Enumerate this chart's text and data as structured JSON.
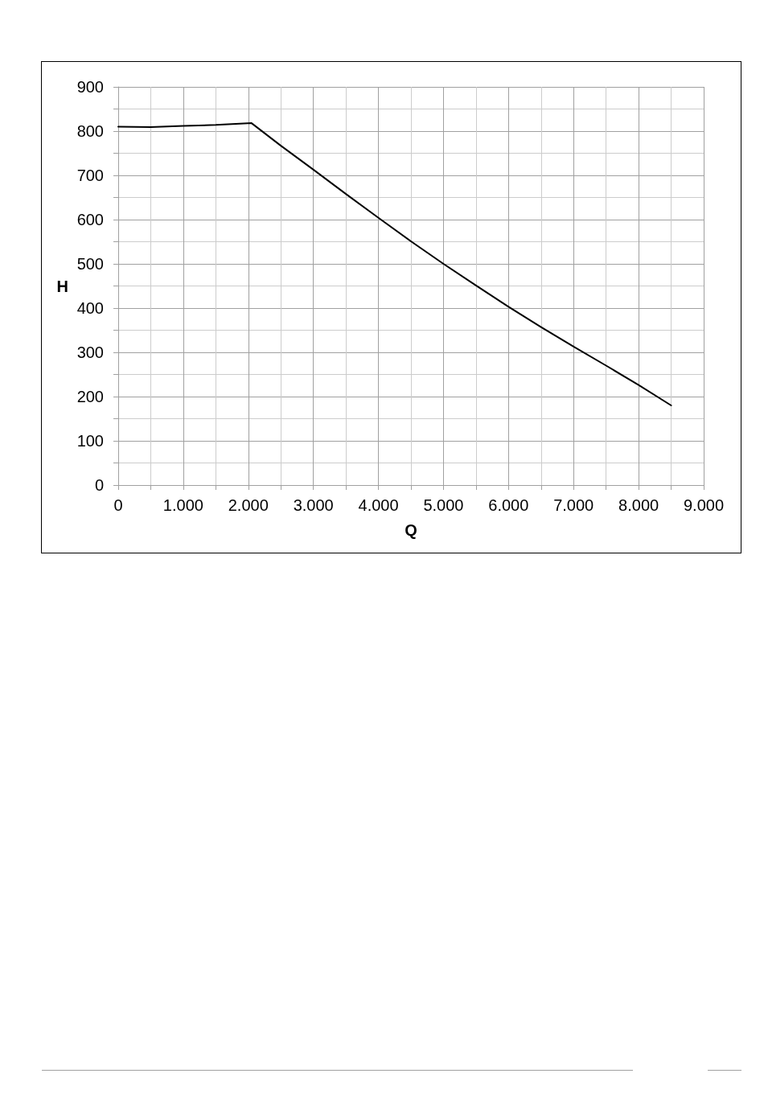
{
  "chart_data": {
    "type": "line",
    "xlabel": "Q",
    "ylabel": "H",
    "x": [
      0,
      500,
      1000,
      1500,
      2050,
      2500,
      3000,
      3500,
      4000,
      4500,
      5000,
      5500,
      6000,
      6500,
      7000,
      7500,
      8000,
      8500
    ],
    "series": [
      {
        "color": "#000000",
        "values": [
          810,
          809,
          812,
          814,
          818,
          767,
          713,
          658,
          604,
          551,
          500,
          451,
          403,
          357,
          313,
          270,
          226,
          180
        ]
      }
    ],
    "xlim": [
      0,
      9000
    ],
    "ylim": [
      0,
      900
    ],
    "xticks": [
      0,
      {
        "value": 500,
        "label": null
      },
      {
        "value": 1000,
        "label": "1.000"
      },
      {
        "value": 1500,
        "label": null
      },
      {
        "value": 2000,
        "label": "2.000"
      },
      {
        "value": 2500,
        "label": null
      },
      {
        "value": 3000,
        "label": "3.000"
      },
      {
        "value": 3500,
        "label": null
      },
      {
        "value": 4000,
        "label": "4.000"
      },
      {
        "value": 4500,
        "label": null
      },
      {
        "value": 5000,
        "label": "5.000"
      },
      {
        "value": 5500,
        "label": null
      },
      {
        "value": 6000,
        "label": "6.000"
      },
      {
        "value": 6500,
        "label": null
      },
      {
        "value": 7000,
        "label": "7.000"
      },
      {
        "value": 7500,
        "label": null
      },
      {
        "value": 8000,
        "label": "8.000"
      },
      {
        "value": 8500,
        "label": null
      },
      {
        "value": 9000,
        "label": "9.000"
      }
    ],
    "yticks": [
      0,
      {
        "value": 50,
        "label": null
      },
      100,
      {
        "value": 150,
        "label": null
      },
      200,
      {
        "value": 250,
        "label": null
      },
      300,
      {
        "value": 350,
        "label": null
      },
      400,
      {
        "value": 450,
        "label": null
      },
      500,
      {
        "value": 550,
        "label": null
      },
      600,
      {
        "value": 650,
        "label": null
      },
      700,
      {
        "value": 750,
        "label": null
      },
      800,
      {
        "value": 850,
        "label": null
      },
      900
    ],
    "grid": true,
    "marker": "none",
    "line_style": "solid"
  }
}
